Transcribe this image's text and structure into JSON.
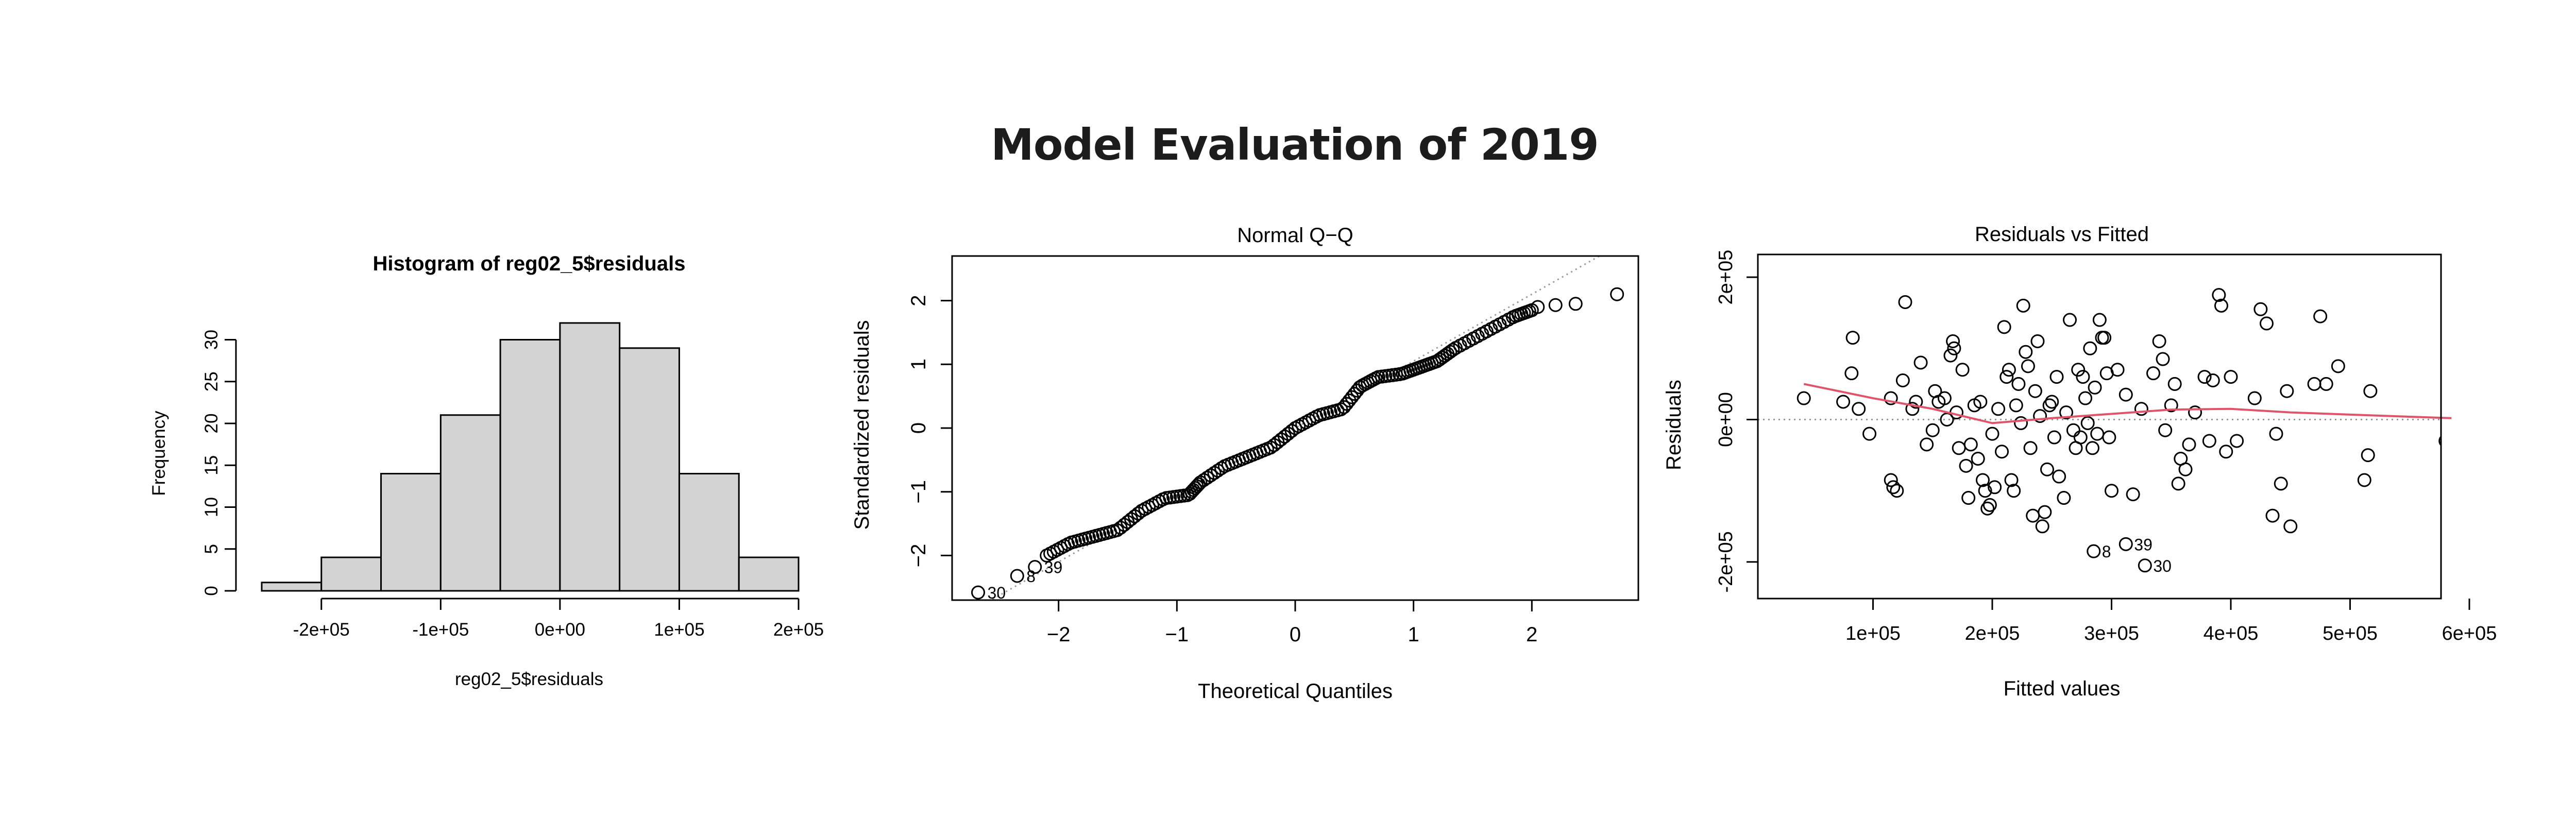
{
  "page": {
    "title": "Model Evaluation of 2019"
  },
  "chart_data": [
    {
      "type": "bar",
      "title": "Histogram of reg02_5$residuals",
      "xlabel": "reg02_5$residuals",
      "ylabel": "Frequency",
      "bin_edges": [
        -250000,
        -200000,
        -150000,
        -100000,
        -50000,
        0,
        50000,
        100000,
        150000,
        200000
      ],
      "values": [
        1,
        4,
        14,
        21,
        30,
        32,
        29,
        14,
        4
      ],
      "x_ticks": [
        -200000,
        -100000,
        0,
        100000,
        200000
      ],
      "x_tick_labels": [
        "-2e+05",
        "-1e+05",
        "0e+00",
        "1e+05",
        "2e+05"
      ],
      "y_ticks": [
        0,
        5,
        10,
        15,
        20,
        25,
        30
      ],
      "y_tick_labels": [
        "0",
        "5",
        "10",
        "15",
        "20",
        "25",
        "30"
      ],
      "ylim": [
        0,
        32
      ],
      "bar_color": "#d3d3d3"
    },
    {
      "type": "scatter",
      "title": "Normal Q−Q",
      "xlabel": "Theoretical Quantiles",
      "ylabel": "Standardized residuals",
      "xlim": [
        -2.9,
        2.9
      ],
      "ylim": [
        -2.7,
        2.7
      ],
      "x_ticks": [
        -2,
        -1,
        0,
        1,
        2
      ],
      "x_tick_labels": [
        "−2",
        "−1",
        "0",
        "1",
        "2"
      ],
      "y_ticks": [
        -2,
        -1,
        0,
        1,
        2
      ],
      "y_tick_labels": [
        "−2",
        "−1",
        "0",
        "1",
        "2"
      ],
      "reference_line": {
        "intercept": 0,
        "slope": 1.05,
        "style": "dotted",
        "color": "#999999"
      },
      "labelled_points": [
        {
          "label": "30",
          "x": -2.68,
          "y": -2.58
        },
        {
          "label": "8",
          "x": -2.35,
          "y": -2.32
        },
        {
          "label": "39",
          "x": -2.2,
          "y": -2.18
        }
      ],
      "curve_knots": [
        [
          -2.1,
          -2.0
        ],
        [
          -1.9,
          -1.8
        ],
        [
          -1.7,
          -1.7
        ],
        [
          -1.5,
          -1.6
        ],
        [
          -1.3,
          -1.3
        ],
        [
          -1.1,
          -1.1
        ],
        [
          -0.9,
          -1.05
        ],
        [
          -0.8,
          -0.85
        ],
        [
          -0.6,
          -0.6
        ],
        [
          -0.4,
          -0.45
        ],
        [
          -0.2,
          -0.3
        ],
        [
          0.0,
          0.0
        ],
        [
          0.2,
          0.2
        ],
        [
          0.4,
          0.3
        ],
        [
          0.55,
          0.65
        ],
        [
          0.7,
          0.8
        ],
        [
          0.9,
          0.85
        ],
        [
          1.05,
          0.95
        ],
        [
          1.2,
          1.05
        ],
        [
          1.35,
          1.25
        ],
        [
          1.6,
          1.5
        ],
        [
          1.85,
          1.75
        ],
        [
          2.0,
          1.85
        ]
      ],
      "n_points": 149,
      "upper_points": [
        [
          2.05,
          1.9
        ],
        [
          2.2,
          1.93
        ],
        [
          2.37,
          1.95
        ],
        [
          2.72,
          2.1
        ]
      ]
    },
    {
      "type": "scatter",
      "title": "Residuals vs Fitted",
      "xlabel": "Fitted values",
      "ylabel": "Residuals",
      "xlim": [
        0,
        600000
      ],
      "ylim": [
        -250000,
        250000
      ],
      "x_ticks": [
        100000,
        200000,
        300000,
        400000,
        500000,
        600000
      ],
      "x_tick_labels": [
        "1e+05",
        "2e+05",
        "3e+05",
        "4e+05",
        "5e+05",
        "6e+05"
      ],
      "y_ticks": [
        -200000,
        0,
        200000
      ],
      "y_tick_labels": [
        "-2e+05",
        "0e+00",
        "2e+05"
      ],
      "smoother_color": "#df536b",
      "smoother": [
        [
          42000,
          50000
        ],
        [
          100000,
          30000
        ],
        [
          150000,
          15000
        ],
        [
          200000,
          -5000
        ],
        [
          250000,
          2000
        ],
        [
          300000,
          8000
        ],
        [
          350000,
          14000
        ],
        [
          400000,
          15000
        ],
        [
          450000,
          10000
        ],
        [
          500000,
          7000
        ],
        [
          550000,
          4000
        ],
        [
          585000,
          2000
        ]
      ],
      "labelled_points": [
        {
          "label": "39",
          "x": 312000,
          "y": -175000
        },
        {
          "label": "8",
          "x": 285000,
          "y": -185000
        },
        {
          "label": "30",
          "x": 328000,
          "y": -205000
        }
      ],
      "points": [
        [
          42000,
          30000
        ],
        [
          75000,
          25000
        ],
        [
          82000,
          65000
        ],
        [
          83000,
          115000
        ],
        [
          88000,
          15000
        ],
        [
          97000,
          -20000
        ],
        [
          115000,
          30000
        ],
        [
          115000,
          -85000
        ],
        [
          117000,
          -95000
        ],
        [
          120000,
          -100000
        ],
        [
          125000,
          55000
        ],
        [
          127000,
          165000
        ],
        [
          133000,
          15000
        ],
        [
          136000,
          25000
        ],
        [
          140000,
          80000
        ],
        [
          145000,
          -35000
        ],
        [
          150000,
          -15000
        ],
        [
          152000,
          40000
        ],
        [
          155000,
          25000
        ],
        [
          160000,
          30000
        ],
        [
          162000,
          0
        ],
        [
          165000,
          90000
        ],
        [
          167000,
          110000
        ],
        [
          168000,
          100000
        ],
        [
          170000,
          10000
        ],
        [
          172000,
          -40000
        ],
        [
          175000,
          70000
        ],
        [
          178000,
          -65000
        ],
        [
          180000,
          -110000
        ],
        [
          182000,
          -35000
        ],
        [
          185000,
          20000
        ],
        [
          188000,
          -55000
        ],
        [
          190000,
          25000
        ],
        [
          192000,
          -85000
        ],
        [
          194000,
          -100000
        ],
        [
          196000,
          -125000
        ],
        [
          198000,
          -120000
        ],
        [
          200000,
          -20000
        ],
        [
          202000,
          -95000
        ],
        [
          205000,
          15000
        ],
        [
          208000,
          -45000
        ],
        [
          210000,
          130000
        ],
        [
          212000,
          60000
        ],
        [
          214000,
          70000
        ],
        [
          216000,
          -85000
        ],
        [
          218000,
          -100000
        ],
        [
          220000,
          20000
        ],
        [
          222000,
          50000
        ],
        [
          224000,
          -5000
        ],
        [
          226000,
          160000
        ],
        [
          228000,
          95000
        ],
        [
          230000,
          75000
        ],
        [
          232000,
          -40000
        ],
        [
          234000,
          -135000
        ],
        [
          236000,
          40000
        ],
        [
          238000,
          110000
        ],
        [
          240000,
          5000
        ],
        [
          242000,
          -150000
        ],
        [
          244000,
          -130000
        ],
        [
          246000,
          -70000
        ],
        [
          248000,
          20000
        ],
        [
          250000,
          25000
        ],
        [
          252000,
          -25000
        ],
        [
          254000,
          60000
        ],
        [
          256000,
          -80000
        ],
        [
          260000,
          -110000
        ],
        [
          262000,
          10000
        ],
        [
          265000,
          140000
        ],
        [
          268000,
          -15000
        ],
        [
          270000,
          -40000
        ],
        [
          272000,
          70000
        ],
        [
          274000,
          -25000
        ],
        [
          276000,
          60000
        ],
        [
          278000,
          30000
        ],
        [
          280000,
          -5000
        ],
        [
          282000,
          100000
        ],
        [
          284000,
          -40000
        ],
        [
          286000,
          45000
        ],
        [
          288000,
          -20000
        ],
        [
          290000,
          140000
        ],
        [
          292000,
          115000
        ],
        [
          294000,
          115000
        ],
        [
          296000,
          65000
        ],
        [
          298000,
          -25000
        ],
        [
          300000,
          -100000
        ],
        [
          305000,
          70000
        ],
        [
          312000,
          35000
        ],
        [
          318000,
          -105000
        ],
        [
          325000,
          15000
        ],
        [
          335000,
          65000
        ],
        [
          340000,
          110000
        ],
        [
          343000,
          85000
        ],
        [
          345000,
          -15000
        ],
        [
          350000,
          20000
        ],
        [
          353000,
          50000
        ],
        [
          356000,
          -90000
        ],
        [
          358000,
          -55000
        ],
        [
          362000,
          -70000
        ],
        [
          365000,
          -35000
        ],
        [
          370000,
          10000
        ],
        [
          378000,
          60000
        ],
        [
          382000,
          -30000
        ],
        [
          385000,
          55000
        ],
        [
          390000,
          175000
        ],
        [
          392000,
          160000
        ],
        [
          396000,
          -45000
        ],
        [
          400000,
          60000
        ],
        [
          405000,
          -30000
        ],
        [
          420000,
          30000
        ],
        [
          425000,
          155000
        ],
        [
          430000,
          135000
        ],
        [
          435000,
          -135000
        ],
        [
          438000,
          -20000
        ],
        [
          442000,
          -90000
        ],
        [
          447000,
          40000
        ],
        [
          450000,
          -150000
        ],
        [
          470000,
          50000
        ],
        [
          475000,
          145000
        ],
        [
          480000,
          50000
        ],
        [
          490000,
          75000
        ],
        [
          512000,
          -85000
        ],
        [
          515000,
          -50000
        ],
        [
          517000,
          40000
        ],
        [
          580000,
          -30000
        ]
      ]
    }
  ]
}
